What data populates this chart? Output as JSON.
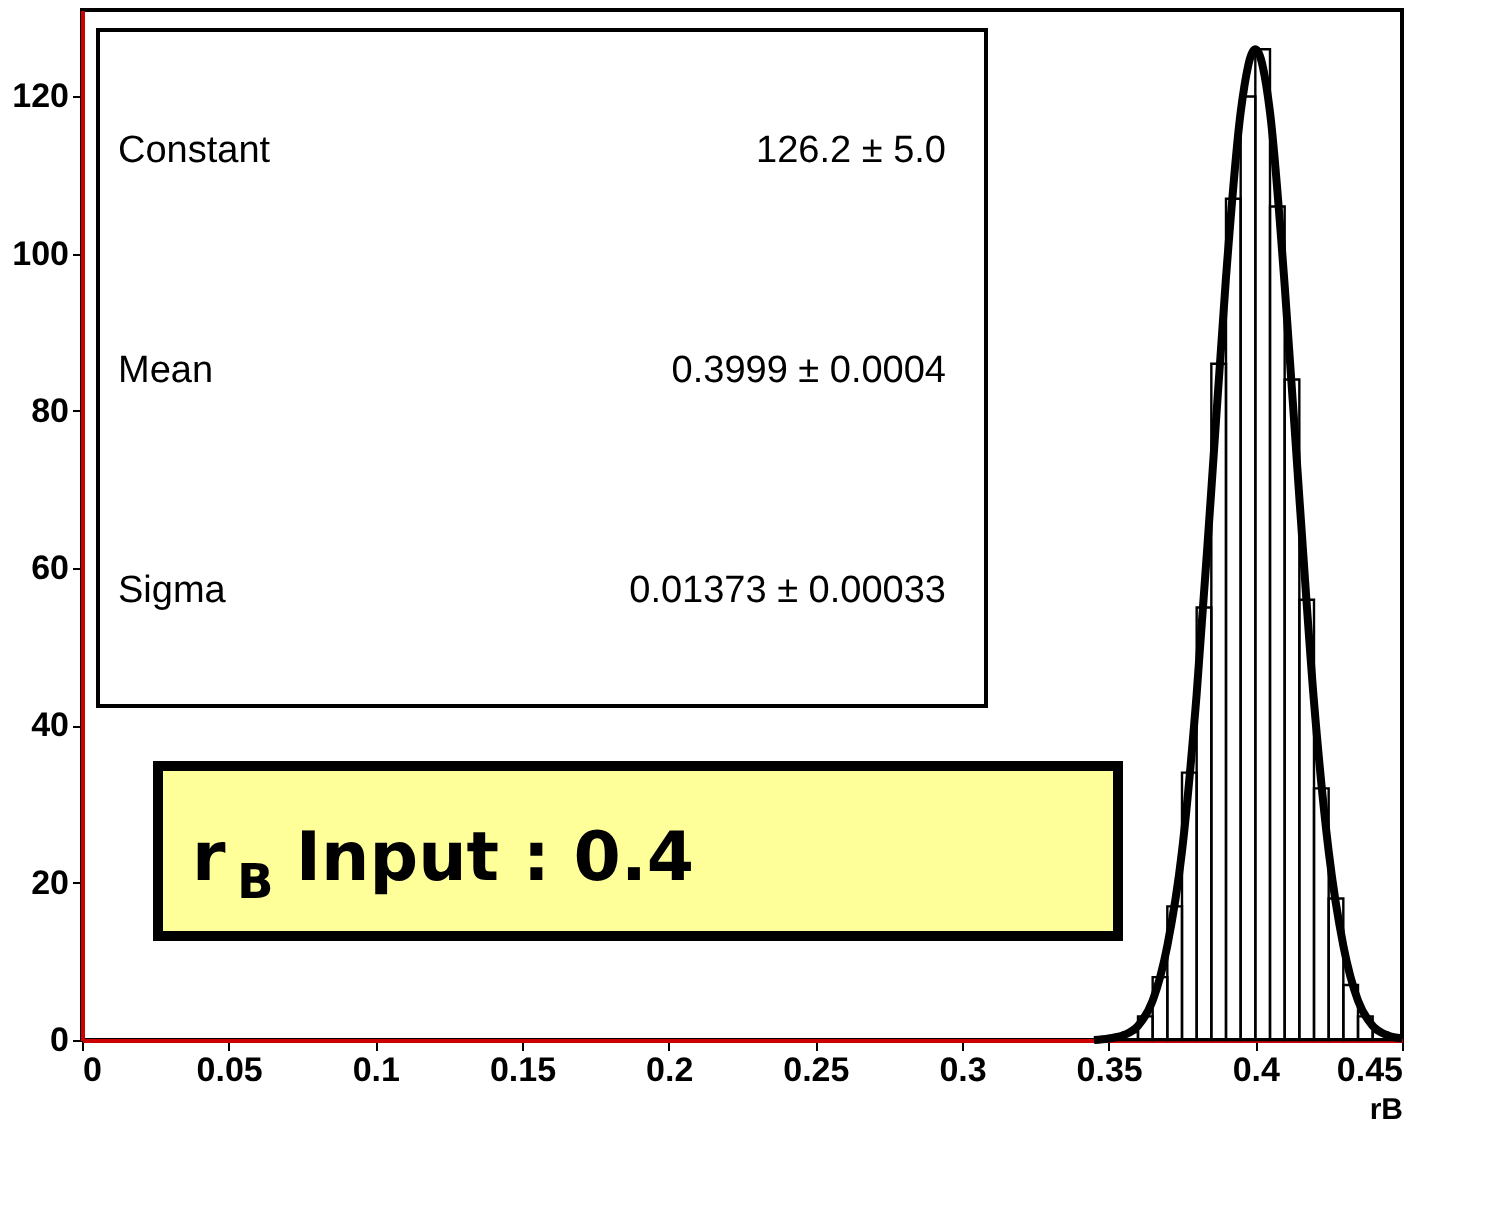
{
  "chart_data": {
    "type": "histogram",
    "xlabel": "rB",
    "bins": [
      0.345,
      0.35,
      0.355,
      0.36,
      0.365,
      0.37,
      0.375,
      0.38,
      0.385,
      0.39,
      0.395,
      0.4,
      0.405,
      0.41,
      0.415,
      0.42,
      0.425,
      0.43,
      0.435,
      0.44,
      0.445,
      0.45
    ],
    "values": [
      0,
      0,
      1,
      3,
      8,
      17,
      34,
      55,
      86,
      107,
      120,
      126,
      106,
      84,
      56,
      32,
      18,
      7,
      3,
      1,
      0
    ],
    "color": "#000000",
    "series": [
      {
        "type": "line",
        "color": "#000000",
        "x": [
          0.345,
          0.35,
          0.355,
          0.36,
          0.365,
          0.37,
          0.375,
          0.38,
          0.385,
          0.39,
          0.395,
          0.4,
          0.405,
          0.41,
          0.415,
          0.42,
          0.425,
          0.43,
          0.435,
          0.44,
          0.445,
          0.45
        ],
        "values": [
          0,
          0.2,
          0.6,
          1.8,
          5,
          12,
          24,
          44,
          70,
          97,
          118,
          126,
          118,
          96,
          69,
          43,
          24,
          12,
          5,
          1.8,
          0.6,
          0.2
        ]
      }
    ],
    "xlim": [
      0,
      0.45
    ],
    "ylim": [
      0,
      131
    ],
    "xticks": [
      0,
      0.05,
      0.1,
      0.15,
      0.2,
      0.25,
      0.3,
      0.35,
      0.4,
      0.45
    ],
    "yticks": [
      0,
      20,
      40,
      60,
      80,
      100,
      120
    ],
    "annotations": [
      "Constant",
      "126.2 ± 5.0",
      "Mean",
      "0.3999 ± 0.0004",
      "Sigma",
      "0.01373 ± 0.00033",
      "r$_{B}$ Input : 0.4"
    ]
  }
}
